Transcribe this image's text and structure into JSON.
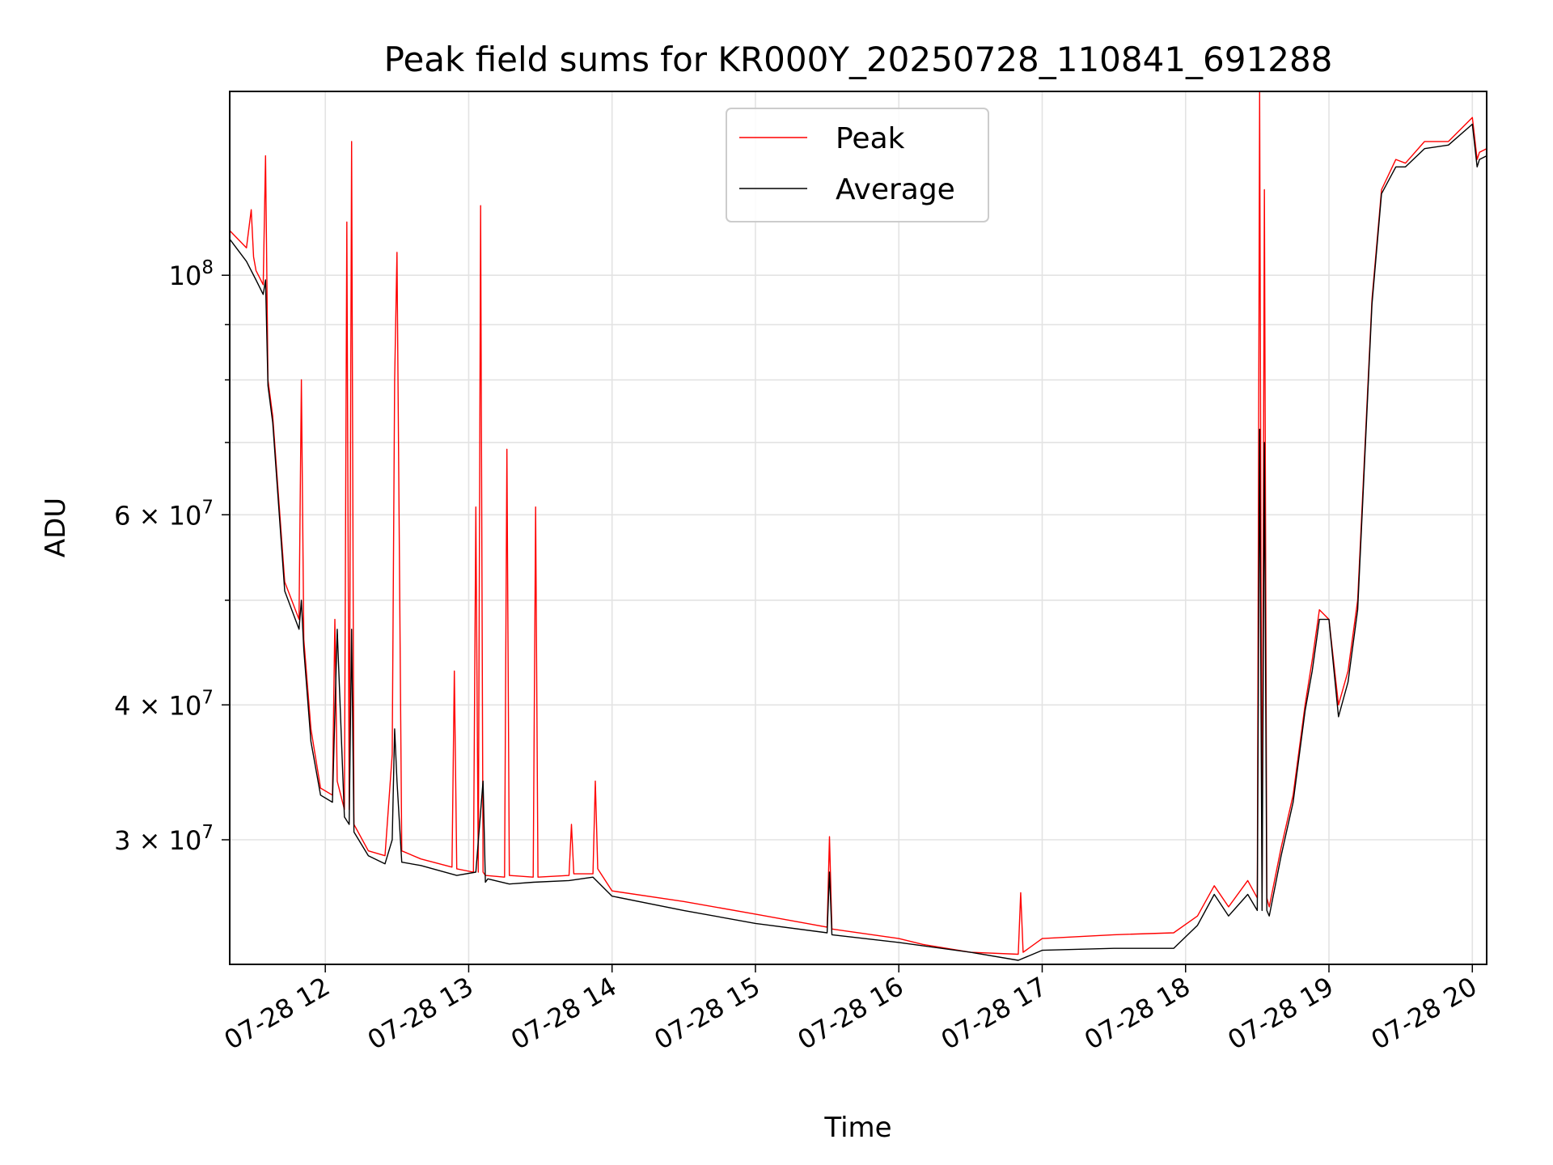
{
  "chart_data": {
    "type": "line",
    "title": "Peak field sums for KR000Y_20250728_110841_691288",
    "xlabel": "Time",
    "ylabel": "ADU",
    "yscale": "log",
    "ylim": [
      23000000,
      148000000
    ],
    "xlim": [
      "2025-07-28 11:20",
      "2025-07-28 20:06"
    ],
    "grid": true,
    "legend": "upper center",
    "x_ticks": [
      {
        "value": "2025-07-28 12:00",
        "label": "07-28 12"
      },
      {
        "value": "2025-07-28 13:00",
        "label": "07-28 13"
      },
      {
        "value": "2025-07-28 14:00",
        "label": "07-28 14"
      },
      {
        "value": "2025-07-28 15:00",
        "label": "07-28 15"
      },
      {
        "value": "2025-07-28 16:00",
        "label": "07-28 16"
      },
      {
        "value": "2025-07-28 17:00",
        "label": "07-28 17"
      },
      {
        "value": "2025-07-28 18:00",
        "label": "07-28 18"
      },
      {
        "value": "2025-07-28 19:00",
        "label": "07-28 19"
      },
      {
        "value": "2025-07-28 20:00",
        "label": "07-28 20"
      }
    ],
    "y_ticks": [
      {
        "value": 100000000,
        "base": "10",
        "exp": "8"
      },
      {
        "value": 60000000,
        "base": "6 × 10",
        "exp": "7"
      },
      {
        "value": 40000000,
        "base": "4 × 10",
        "exp": "7"
      },
      {
        "value": 30000000,
        "base": "3 × 10",
        "exp": "7"
      }
    ],
    "series": [
      {
        "name": "Peak",
        "color": "#ff0000",
        "x": [
          "2025-07-28 11:20",
          "2025-07-28 11:27",
          "2025-07-28 11:29",
          "2025-07-28 11:30",
          "2025-07-28 11:31",
          "2025-07-28 11:34",
          "2025-07-28 11:35",
          "2025-07-28 11:36",
          "2025-07-28 11:38",
          "2025-07-28 11:43",
          "2025-07-28 11:49",
          "2025-07-28 11:50",
          "2025-07-28 11:51",
          "2025-07-28 11:54",
          "2025-07-28 11:58",
          "2025-07-28 12:03",
          "2025-07-28 12:04",
          "2025-07-28 12:05",
          "2025-07-28 12:08",
          "2025-07-28 12:09",
          "2025-07-28 12:10",
          "2025-07-28 12:11",
          "2025-07-28 12:12",
          "2025-07-28 12:18",
          "2025-07-28 12:25",
          "2025-07-28 12:28",
          "2025-07-28 12:29",
          "2025-07-28 12:30",
          "2025-07-28 12:32",
          "2025-07-28 12:40",
          "2025-07-28 12:53",
          "2025-07-28 12:54",
          "2025-07-28 12:55",
          "2025-07-28 13:02",
          "2025-07-28 13:03",
          "2025-07-28 13:04",
          "2025-07-28 13:05",
          "2025-07-28 13:06",
          "2025-07-28 13:07",
          "2025-07-28 13:15",
          "2025-07-28 13:16",
          "2025-07-28 13:17",
          "2025-07-28 13:27",
          "2025-07-28 13:28",
          "2025-07-28 13:29",
          "2025-07-28 13:42",
          "2025-07-28 13:43",
          "2025-07-28 13:44",
          "2025-07-28 13:52",
          "2025-07-28 13:53",
          "2025-07-28 13:54",
          "2025-07-28 14:00",
          "2025-07-28 14:30",
          "2025-07-28 15:00",
          "2025-07-28 15:30",
          "2025-07-28 15:31",
          "2025-07-28 15:32",
          "2025-07-28 16:00",
          "2025-07-28 16:10",
          "2025-07-28 16:30",
          "2025-07-28 16:50",
          "2025-07-28 16:51",
          "2025-07-28 16:52",
          "2025-07-28 17:00",
          "2025-07-28 17:30",
          "2025-07-28 17:55",
          "2025-07-28 18:05",
          "2025-07-28 18:12",
          "2025-07-28 18:18",
          "2025-07-28 18:26",
          "2025-07-28 18:30",
          "2025-07-28 18:31",
          "2025-07-28 18:32",
          "2025-07-28 18:33",
          "2025-07-28 18:34",
          "2025-07-28 18:35",
          "2025-07-28 18:40",
          "2025-07-28 18:45",
          "2025-07-28 18:50",
          "2025-07-28 18:53",
          "2025-07-28 18:56",
          "2025-07-28 19:00",
          "2025-07-28 19:04",
          "2025-07-28 19:08",
          "2025-07-28 19:12",
          "2025-07-28 19:18",
          "2025-07-28 19:22",
          "2025-07-28 19:28",
          "2025-07-28 19:32",
          "2025-07-28 19:40",
          "2025-07-28 19:50",
          "2025-07-28 20:00",
          "2025-07-28 20:02",
          "2025-07-28 20:03",
          "2025-07-28 20:06"
        ],
        "y": [
          110000000,
          106000000,
          115000000,
          104000000,
          101000000,
          98000000,
          129000000,
          80000000,
          74000000,
          52000000,
          48000000,
          80000000,
          46000000,
          38000000,
          33500000,
          33000000,
          48000000,
          34000000,
          32000000,
          112000000,
          32000000,
          133000000,
          31000000,
          29300000,
          29000000,
          36000000,
          80000000,
          105000000,
          29300000,
          28800000,
          28300000,
          43000000,
          28200000,
          28000000,
          61000000,
          28000000,
          116000000,
          28000000,
          27800000,
          27700000,
          69000000,
          27800000,
          27700000,
          61000000,
          27700000,
          27800000,
          31000000,
          27900000,
          27900000,
          34000000,
          28200000,
          26900000,
          26300000,
          25600000,
          24900000,
          30200000,
          24800000,
          24300000,
          24000000,
          23600000,
          23500000,
          26800000,
          23600000,
          24300000,
          24500000,
          24600000,
          25500000,
          27200000,
          26000000,
          27500000,
          26500000,
          148000000,
          26500000,
          120000000,
          26500000,
          26000000,
          29500000,
          33000000,
          40000000,
          44000000,
          49000000,
          48000000,
          40000000,
          43000000,
          50000000,
          95000000,
          120000000,
          128000000,
          127000000,
          133000000,
          133000000,
          140000000,
          128000000,
          130000000,
          131000000
        ]
      },
      {
        "name": "Average",
        "color": "#000000",
        "x": [
          "2025-07-28 11:20",
          "2025-07-28 11:27",
          "2025-07-28 11:31",
          "2025-07-28 11:34",
          "2025-07-28 11:35",
          "2025-07-28 11:36",
          "2025-07-28 11:38",
          "2025-07-28 11:43",
          "2025-07-28 11:49",
          "2025-07-28 11:50",
          "2025-07-28 11:51",
          "2025-07-28 11:54",
          "2025-07-28 11:58",
          "2025-07-28 12:03",
          "2025-07-28 12:05",
          "2025-07-28 12:08",
          "2025-07-28 12:10",
          "2025-07-28 12:11",
          "2025-07-28 12:12",
          "2025-07-28 12:18",
          "2025-07-28 12:25",
          "2025-07-28 12:28",
          "2025-07-28 12:29",
          "2025-07-28 12:30",
          "2025-07-28 12:32",
          "2025-07-28 12:40",
          "2025-07-28 12:55",
          "2025-07-28 13:03",
          "2025-07-28 13:06",
          "2025-07-28 13:07",
          "2025-07-28 13:08",
          "2025-07-28 13:17",
          "2025-07-28 13:27",
          "2025-07-28 13:42",
          "2025-07-28 13:52",
          "2025-07-28 14:00",
          "2025-07-28 14:30",
          "2025-07-28 15:00",
          "2025-07-28 15:30",
          "2025-07-28 15:31",
          "2025-07-28 15:32",
          "2025-07-28 16:00",
          "2025-07-28 16:30",
          "2025-07-28 16:50",
          "2025-07-28 17:00",
          "2025-07-28 17:30",
          "2025-07-28 17:55",
          "2025-07-28 18:05",
          "2025-07-28 18:12",
          "2025-07-28 18:18",
          "2025-07-28 18:26",
          "2025-07-28 18:30",
          "2025-07-28 18:31",
          "2025-07-28 18:32",
          "2025-07-28 18:33",
          "2025-07-28 18:34",
          "2025-07-28 18:35",
          "2025-07-28 18:40",
          "2025-07-28 18:45",
          "2025-07-28 18:50",
          "2025-07-28 18:53",
          "2025-07-28 18:56",
          "2025-07-28 19:00",
          "2025-07-28 19:04",
          "2025-07-28 19:08",
          "2025-07-28 19:12",
          "2025-07-28 19:18",
          "2025-07-28 19:22",
          "2025-07-28 19:28",
          "2025-07-28 19:32",
          "2025-07-28 19:40",
          "2025-07-28 19:50",
          "2025-07-28 20:00",
          "2025-07-28 20:02",
          "2025-07-28 20:03",
          "2025-07-28 20:06"
        ],
        "y": [
          108000000,
          103000000,
          99000000,
          96000000,
          99000000,
          79000000,
          73000000,
          51000000,
          47000000,
          50000000,
          45000000,
          37000000,
          33000000,
          32500000,
          47000000,
          31500000,
          31000000,
          47000000,
          30500000,
          29000000,
          28500000,
          30000000,
          38000000,
          34000000,
          28600000,
          28400000,
          27800000,
          28000000,
          34000000,
          27400000,
          27600000,
          27300000,
          27400000,
          27500000,
          27700000,
          26600000,
          25800000,
          25100000,
          24600000,
          28000000,
          24500000,
          24100000,
          23600000,
          23200000,
          23700000,
          23800000,
          23800000,
          25000000,
          26700000,
          25500000,
          26700000,
          25800000,
          72000000,
          25800000,
          70000000,
          25800000,
          25500000,
          29000000,
          32500000,
          39500000,
          43000000,
          48000000,
          48000000,
          39000000,
          42000000,
          49000000,
          94000000,
          119000000,
          126000000,
          126000000,
          131000000,
          132000000,
          138000000,
          126000000,
          128000000,
          129000000
        ]
      }
    ]
  }
}
